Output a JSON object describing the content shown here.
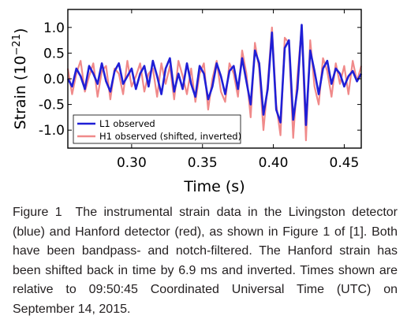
{
  "chart_data": {
    "type": "line",
    "xlabel": "Time (s)",
    "ylabel": "Strain (10",
    "ylabel_exp": "−21",
    "ylabel_close": ")",
    "xlim": [
      0.255,
      0.462
    ],
    "ylim": [
      -1.35,
      1.35
    ],
    "xticks": [
      0.3,
      0.35,
      0.4,
      0.45
    ],
    "xtick_labels": [
      "0.30",
      "0.35",
      "0.40",
      "0.45"
    ],
    "yticks": [
      1.0,
      0.5,
      0.0,
      -0.5,
      -1.0
    ],
    "ytick_labels": [
      "1.0",
      "0.5",
      "0.0",
      "-0.5",
      "-1.0"
    ],
    "legend_position": "lower-left",
    "grid": false,
    "series": [
      {
        "name": "L1 observed",
        "color": "#1f1fd6",
        "x": [
          0.255,
          0.258,
          0.261,
          0.264,
          0.267,
          0.27,
          0.273,
          0.276,
          0.279,
          0.282,
          0.285,
          0.288,
          0.291,
          0.294,
          0.297,
          0.3,
          0.303,
          0.306,
          0.309,
          0.312,
          0.315,
          0.318,
          0.321,
          0.324,
          0.327,
          0.33,
          0.333,
          0.336,
          0.339,
          0.342,
          0.345,
          0.348,
          0.351,
          0.354,
          0.357,
          0.36,
          0.363,
          0.366,
          0.369,
          0.372,
          0.375,
          0.378,
          0.381,
          0.384,
          0.387,
          0.39,
          0.393,
          0.396,
          0.399,
          0.402,
          0.405,
          0.408,
          0.411,
          0.414,
          0.417,
          0.42,
          0.423,
          0.426,
          0.429,
          0.432,
          0.435,
          0.438,
          0.441,
          0.444,
          0.447,
          0.45,
          0.453,
          0.456,
          0.459,
          0.462
        ],
        "y": [
          0.0,
          -0.15,
          0.2,
          0.05,
          -0.2,
          0.25,
          0.1,
          -0.1,
          0.3,
          -0.05,
          -0.25,
          0.15,
          0.3,
          -0.1,
          0.05,
          0.2,
          -0.2,
          0.1,
          0.25,
          -0.15,
          0.35,
          0.05,
          -0.3,
          0.2,
          0.4,
          -0.25,
          0.1,
          -0.2,
          0.3,
          -0.1,
          -0.35,
          0.25,
          0.1,
          -0.4,
          -0.15,
          0.3,
          0.05,
          -0.3,
          0.15,
          0.25,
          -0.2,
          0.4,
          -0.05,
          -0.5,
          0.55,
          0.3,
          -0.7,
          -0.2,
          0.9,
          -0.6,
          -0.85,
          0.6,
          0.75,
          -0.8,
          -0.2,
          1.05,
          -0.9,
          0.55,
          0.15,
          -0.3,
          0.2,
          0.35,
          -0.1,
          0.2,
          0.1,
          -0.15,
          0.05,
          0.15,
          -0.05,
          0.1
        ]
      },
      {
        "name": "H1 observed (shifted, inverted)",
        "color": "#f08a8a",
        "x": [
          0.255,
          0.258,
          0.261,
          0.264,
          0.267,
          0.27,
          0.273,
          0.276,
          0.279,
          0.282,
          0.285,
          0.288,
          0.291,
          0.294,
          0.297,
          0.3,
          0.303,
          0.306,
          0.309,
          0.312,
          0.315,
          0.318,
          0.321,
          0.324,
          0.327,
          0.33,
          0.333,
          0.336,
          0.339,
          0.342,
          0.345,
          0.348,
          0.351,
          0.354,
          0.357,
          0.36,
          0.363,
          0.366,
          0.369,
          0.372,
          0.375,
          0.378,
          0.381,
          0.384,
          0.387,
          0.39,
          0.393,
          0.396,
          0.399,
          0.402,
          0.405,
          0.408,
          0.411,
          0.414,
          0.417,
          0.42,
          0.423,
          0.426,
          0.429,
          0.432,
          0.435,
          0.438,
          0.441,
          0.444,
          0.447,
          0.45,
          0.453,
          0.456,
          0.459,
          0.462
        ],
        "y": [
          0.2,
          -0.3,
          0.1,
          0.35,
          -0.25,
          0.05,
          0.3,
          -0.35,
          0.15,
          0.25,
          -0.4,
          0.2,
          0.1,
          -0.3,
          0.35,
          -0.15,
          0.05,
          0.3,
          -0.25,
          0.1,
          0.2,
          -0.35,
          0.3,
          -0.1,
          0.25,
          -0.4,
          0.35,
          0.05,
          -0.3,
          0.2,
          -0.45,
          0.1,
          0.3,
          -0.6,
          0.0,
          0.35,
          -0.25,
          -0.45,
          0.3,
          0.1,
          -0.35,
          0.55,
          0.1,
          -0.75,
          0.7,
          0.2,
          -1.0,
          -0.1,
          1.0,
          -0.5,
          -1.1,
          0.8,
          0.7,
          -1.15,
          0.05,
          1.0,
          -1.2,
          0.75,
          -0.15,
          -0.5,
          0.4,
          0.15,
          -0.35,
          0.3,
          -0.1,
          0.25,
          -0.3,
          0.35,
          -0.05,
          0.25
        ]
      }
    ]
  },
  "caption": {
    "label": "Figure 1",
    "text": "The instrumental strain data in the Livingston detector (blue) and Hanford detector (red), as shown in Figure 1 of [1]. Both have been bandpass- and notch-filtered. The Hanford strain has been shifted back in time by 6.9 ms and inverted. Times shown are relative to 09:50:45 Coordinated Universal Time (UTC) on September 14, 2015."
  }
}
